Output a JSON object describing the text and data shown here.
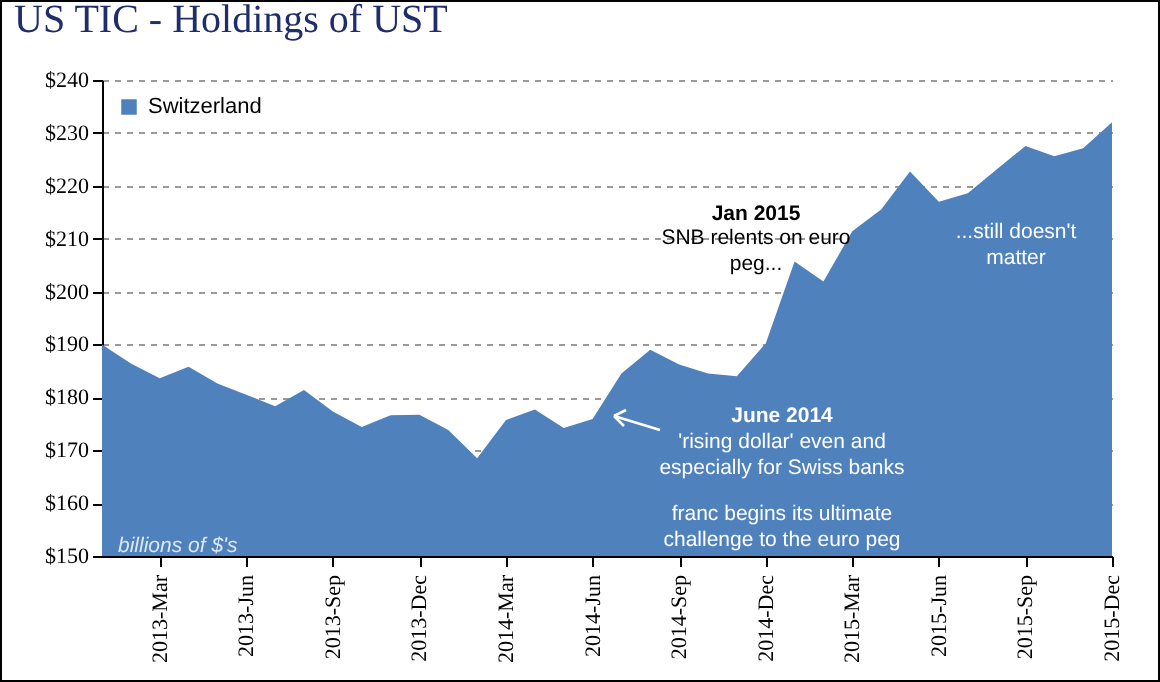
{
  "chart_data": {
    "type": "area",
    "title": "US TIC - Holdings of UST",
    "categories": [
      null,
      null,
      "2013-Mar",
      null,
      null,
      "2013-Jun",
      null,
      null,
      "2013-Sep",
      null,
      null,
      "2013-Dec",
      null,
      null,
      "2014-Mar",
      null,
      null,
      "2014-Jun",
      null,
      null,
      "2014-Sep",
      null,
      null,
      "2014-Dec",
      null,
      null,
      "2015-Mar",
      null,
      null,
      "2015-Jun",
      null,
      null,
      "2015-Sep",
      null,
      null,
      "2015-Dec"
    ],
    "series": [
      {
        "name": "Switzerland",
        "color": "#4f81bd",
        "values": [
          190,
          186.4,
          183.6,
          185.8,
          182.6,
          180.5,
          178.3,
          181.4,
          177.3,
          174.4,
          176.6,
          176.7,
          173.8,
          168.5,
          175.7,
          177.7,
          174.2,
          175.9,
          184.5,
          189,
          186.2,
          184.5,
          184,
          190.2,
          205.7,
          201.9,
          211.4,
          215.5,
          222.7,
          217,
          218.6,
          223.1,
          227.5,
          225.6,
          227.1,
          232
        ]
      }
    ],
    "ylim": [
      150,
      240
    ],
    "yticks": [
      {
        "value": 150,
        "label": "$150"
      },
      {
        "value": 160,
        "label": "$160"
      },
      {
        "value": 170,
        "label": "$170"
      },
      {
        "value": 180,
        "label": "$180"
      },
      {
        "value": 190,
        "label": "$190"
      },
      {
        "value": 200,
        "label": "$200"
      },
      {
        "value": 210,
        "label": "$210"
      },
      {
        "value": 220,
        "label": "$220"
      },
      {
        "value": 230,
        "label": "$230"
      },
      {
        "value": 240,
        "label": "$240"
      }
    ],
    "grid": "y",
    "legend": "top left",
    "annotations": [
      "billions of $'s",
      "Jan 2015",
      "SNB relents on euro peg...",
      "June 2014",
      "'rising dollar' even and especially for Swiss banks",
      "franc begins its ultimate challenge to the euro peg",
      "...still doesn't matter"
    ]
  }
}
